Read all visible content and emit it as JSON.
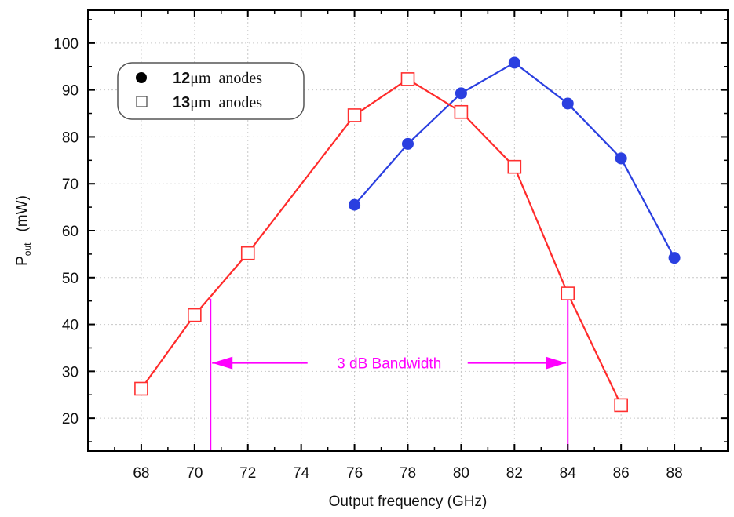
{
  "chart_data": {
    "type": "line",
    "xlabel": "Output  frequency  (GHz)",
    "ylabel": {
      "main": "P",
      "sub": "out",
      "unit": "(mW)"
    },
    "xlim": [
      66,
      90
    ],
    "ylim": [
      13,
      107
    ],
    "x_ticks": [
      68,
      70,
      72,
      74,
      76,
      78,
      80,
      82,
      84,
      86,
      88
    ],
    "y_ticks": [
      20,
      30,
      40,
      50,
      60,
      70,
      80,
      90,
      100
    ],
    "grid": true,
    "legend_position": "top-left",
    "series": [
      {
        "name": "12μm anodes",
        "name_parts": {
          "size": "12",
          "unit": "μm",
          "word": "anodes"
        },
        "marker": "filled-circle",
        "color": "#2a3fe0",
        "marker_color": "#2a3fe0",
        "x": [
          76,
          78,
          80,
          82,
          84,
          86,
          88
        ],
        "y": [
          65.5,
          78.5,
          89.3,
          95.8,
          87.1,
          75.4,
          54.2
        ]
      },
      {
        "name": "13μm anodes",
        "name_parts": {
          "size": "13",
          "unit": "μm",
          "word": "anodes"
        },
        "marker": "open-square",
        "color": "#ff2b2b",
        "marker_color": "#ff3030",
        "x": [
          68,
          70,
          72,
          76,
          78,
          80,
          82,
          84,
          86
        ],
        "y": [
          26.3,
          42.0,
          55.2,
          84.6,
          92.3,
          85.3,
          73.6,
          46.6,
          22.8
        ]
      }
    ],
    "annotations": [
      {
        "text": "3 dB Bandwidth",
        "color": "#ff00ff",
        "from_x": 70.6,
        "to_x": 84.0,
        "arrow_y": 31.8,
        "left_line_y": 45.5,
        "right_line_y": 46.6
      }
    ]
  }
}
